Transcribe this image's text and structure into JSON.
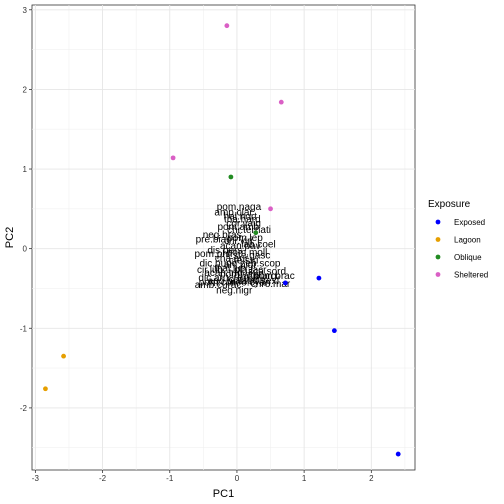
{
  "chart_data": {
    "type": "scatter",
    "xlabel": "PC1",
    "ylabel": "PC2",
    "xlim": [
      -3.05,
      2.65
    ],
    "ylim": [
      -2.78,
      3.06
    ],
    "x_ticks": [
      -3,
      -2,
      -1,
      0,
      1,
      2
    ],
    "y_ticks": [
      -2,
      -1,
      0,
      1,
      2,
      3
    ],
    "grid": true,
    "legend_position": "right",
    "legend_title": "Exposure",
    "series": [
      {
        "name": "Exposed",
        "color": "#0000FF",
        "points": [
          {
            "x": 0.72,
            "y": -0.43
          },
          {
            "x": 1.22,
            "y": -0.37
          },
          {
            "x": 1.45,
            "y": -1.03
          },
          {
            "x": 2.4,
            "y": -2.58
          }
        ]
      },
      {
        "name": "Lagoon",
        "color": "#E69F00",
        "points": [
          {
            "x": -2.58,
            "y": -1.35
          },
          {
            "x": -2.85,
            "y": -1.76
          }
        ]
      },
      {
        "name": "Oblique",
        "color": "#228B22",
        "points": [
          {
            "x": -0.09,
            "y": 0.9
          },
          {
            "x": 0.28,
            "y": 0.2
          }
        ]
      },
      {
        "name": "Sheltered",
        "color": "#DA5FC5",
        "points": [
          {
            "x": -0.15,
            "y": 2.8
          },
          {
            "x": 0.66,
            "y": 1.84
          },
          {
            "x": -0.95,
            "y": 1.14
          },
          {
            "x": 0.5,
            "y": 0.5
          }
        ]
      }
    ],
    "annotations": [
      {
        "text": "pom.naga",
        "x": 0.03,
        "y": 0.53
      },
      {
        "text": "amp.clar",
        "x": -0.05,
        "y": 0.46
      },
      {
        "text": "hal.hort",
        "x": 0.05,
        "y": 0.41
      },
      {
        "text": "tha.hard",
        "x": 0.08,
        "y": 0.37
      },
      {
        "text": "cor.vaig",
        "x": 0.1,
        "y": 0.32
      },
      {
        "text": "pom.amb",
        "x": 0.02,
        "y": 0.28
      },
      {
        "text": "chr.ternati",
        "x": 0.18,
        "y": 0.24
      },
      {
        "text": "neg.bras",
        "x": -0.22,
        "y": 0.18
      },
      {
        "text": "pom.lep",
        "x": 0.12,
        "y": 0.14
      },
      {
        "text": "pre.biac",
        "x": -0.35,
        "y": 0.12
      },
      {
        "text": "chr.viri",
        "x": 0.02,
        "y": 0.1
      },
      {
        "text": "lab.coel",
        "x": 0.32,
        "y": 0.06
      },
      {
        "text": "acan.pav",
        "x": 0.05,
        "y": 0.04
      },
      {
        "text": "dis.pers",
        "x": -0.18,
        "y": -0.02
      },
      {
        "text": "pom.moll",
        "x": 0.15,
        "y": -0.04
      },
      {
        "text": "pom.phil",
        "x": -0.35,
        "y": -0.06
      },
      {
        "text": "ste.gasc",
        "x": 0.22,
        "y": -0.08
      },
      {
        "text": "cha.aur",
        "x": -0.08,
        "y": -0.12
      },
      {
        "text": "cte.stri",
        "x": 0.1,
        "y": -0.14
      },
      {
        "text": "dic.punc",
        "x": -0.28,
        "y": -0.18
      },
      {
        "text": "ani.nigr",
        "x": 0.05,
        "y": -0.2
      },
      {
        "text": "zeb.scop",
        "x": 0.35,
        "y": -0.18
      },
      {
        "text": "thal.lun",
        "x": -0.1,
        "y": -0.24
      },
      {
        "text": "pla.lacr",
        "x": 0.2,
        "y": -0.26
      },
      {
        "text": "cir.lub",
        "x": -0.4,
        "y": -0.26
      },
      {
        "text": "sca.sord",
        "x": 0.45,
        "y": -0.28
      },
      {
        "text": "acan.trig",
        "x": -0.2,
        "y": -0.3
      },
      {
        "text": "pom.vaiu",
        "x": 0.05,
        "y": -0.32
      },
      {
        "text": "hal.marg",
        "x": 0.3,
        "y": -0.34
      },
      {
        "text": "dic.aru",
        "x": -0.35,
        "y": -0.36
      },
      {
        "text": "chr.wein",
        "x": 0.15,
        "y": -0.38
      },
      {
        "text": "pom.brac",
        "x": 0.55,
        "y": -0.34
      },
      {
        "text": "apo.bian",
        "x": -0.15,
        "y": -0.4
      },
      {
        "text": "abu.sexf",
        "x": 0.35,
        "y": -0.4
      },
      {
        "text": "pom.cor",
        "x": -0.3,
        "y": -0.42
      },
      {
        "text": "neo.cyan",
        "x": 0.2,
        "y": -0.42
      },
      {
        "text": "chro.mar",
        "x": 0.5,
        "y": -0.44
      },
      {
        "text": "amb.curac",
        "x": -0.28,
        "y": -0.45
      },
      {
        "text": "neg.nigr",
        "x": -0.04,
        "y": -0.52
      }
    ]
  }
}
